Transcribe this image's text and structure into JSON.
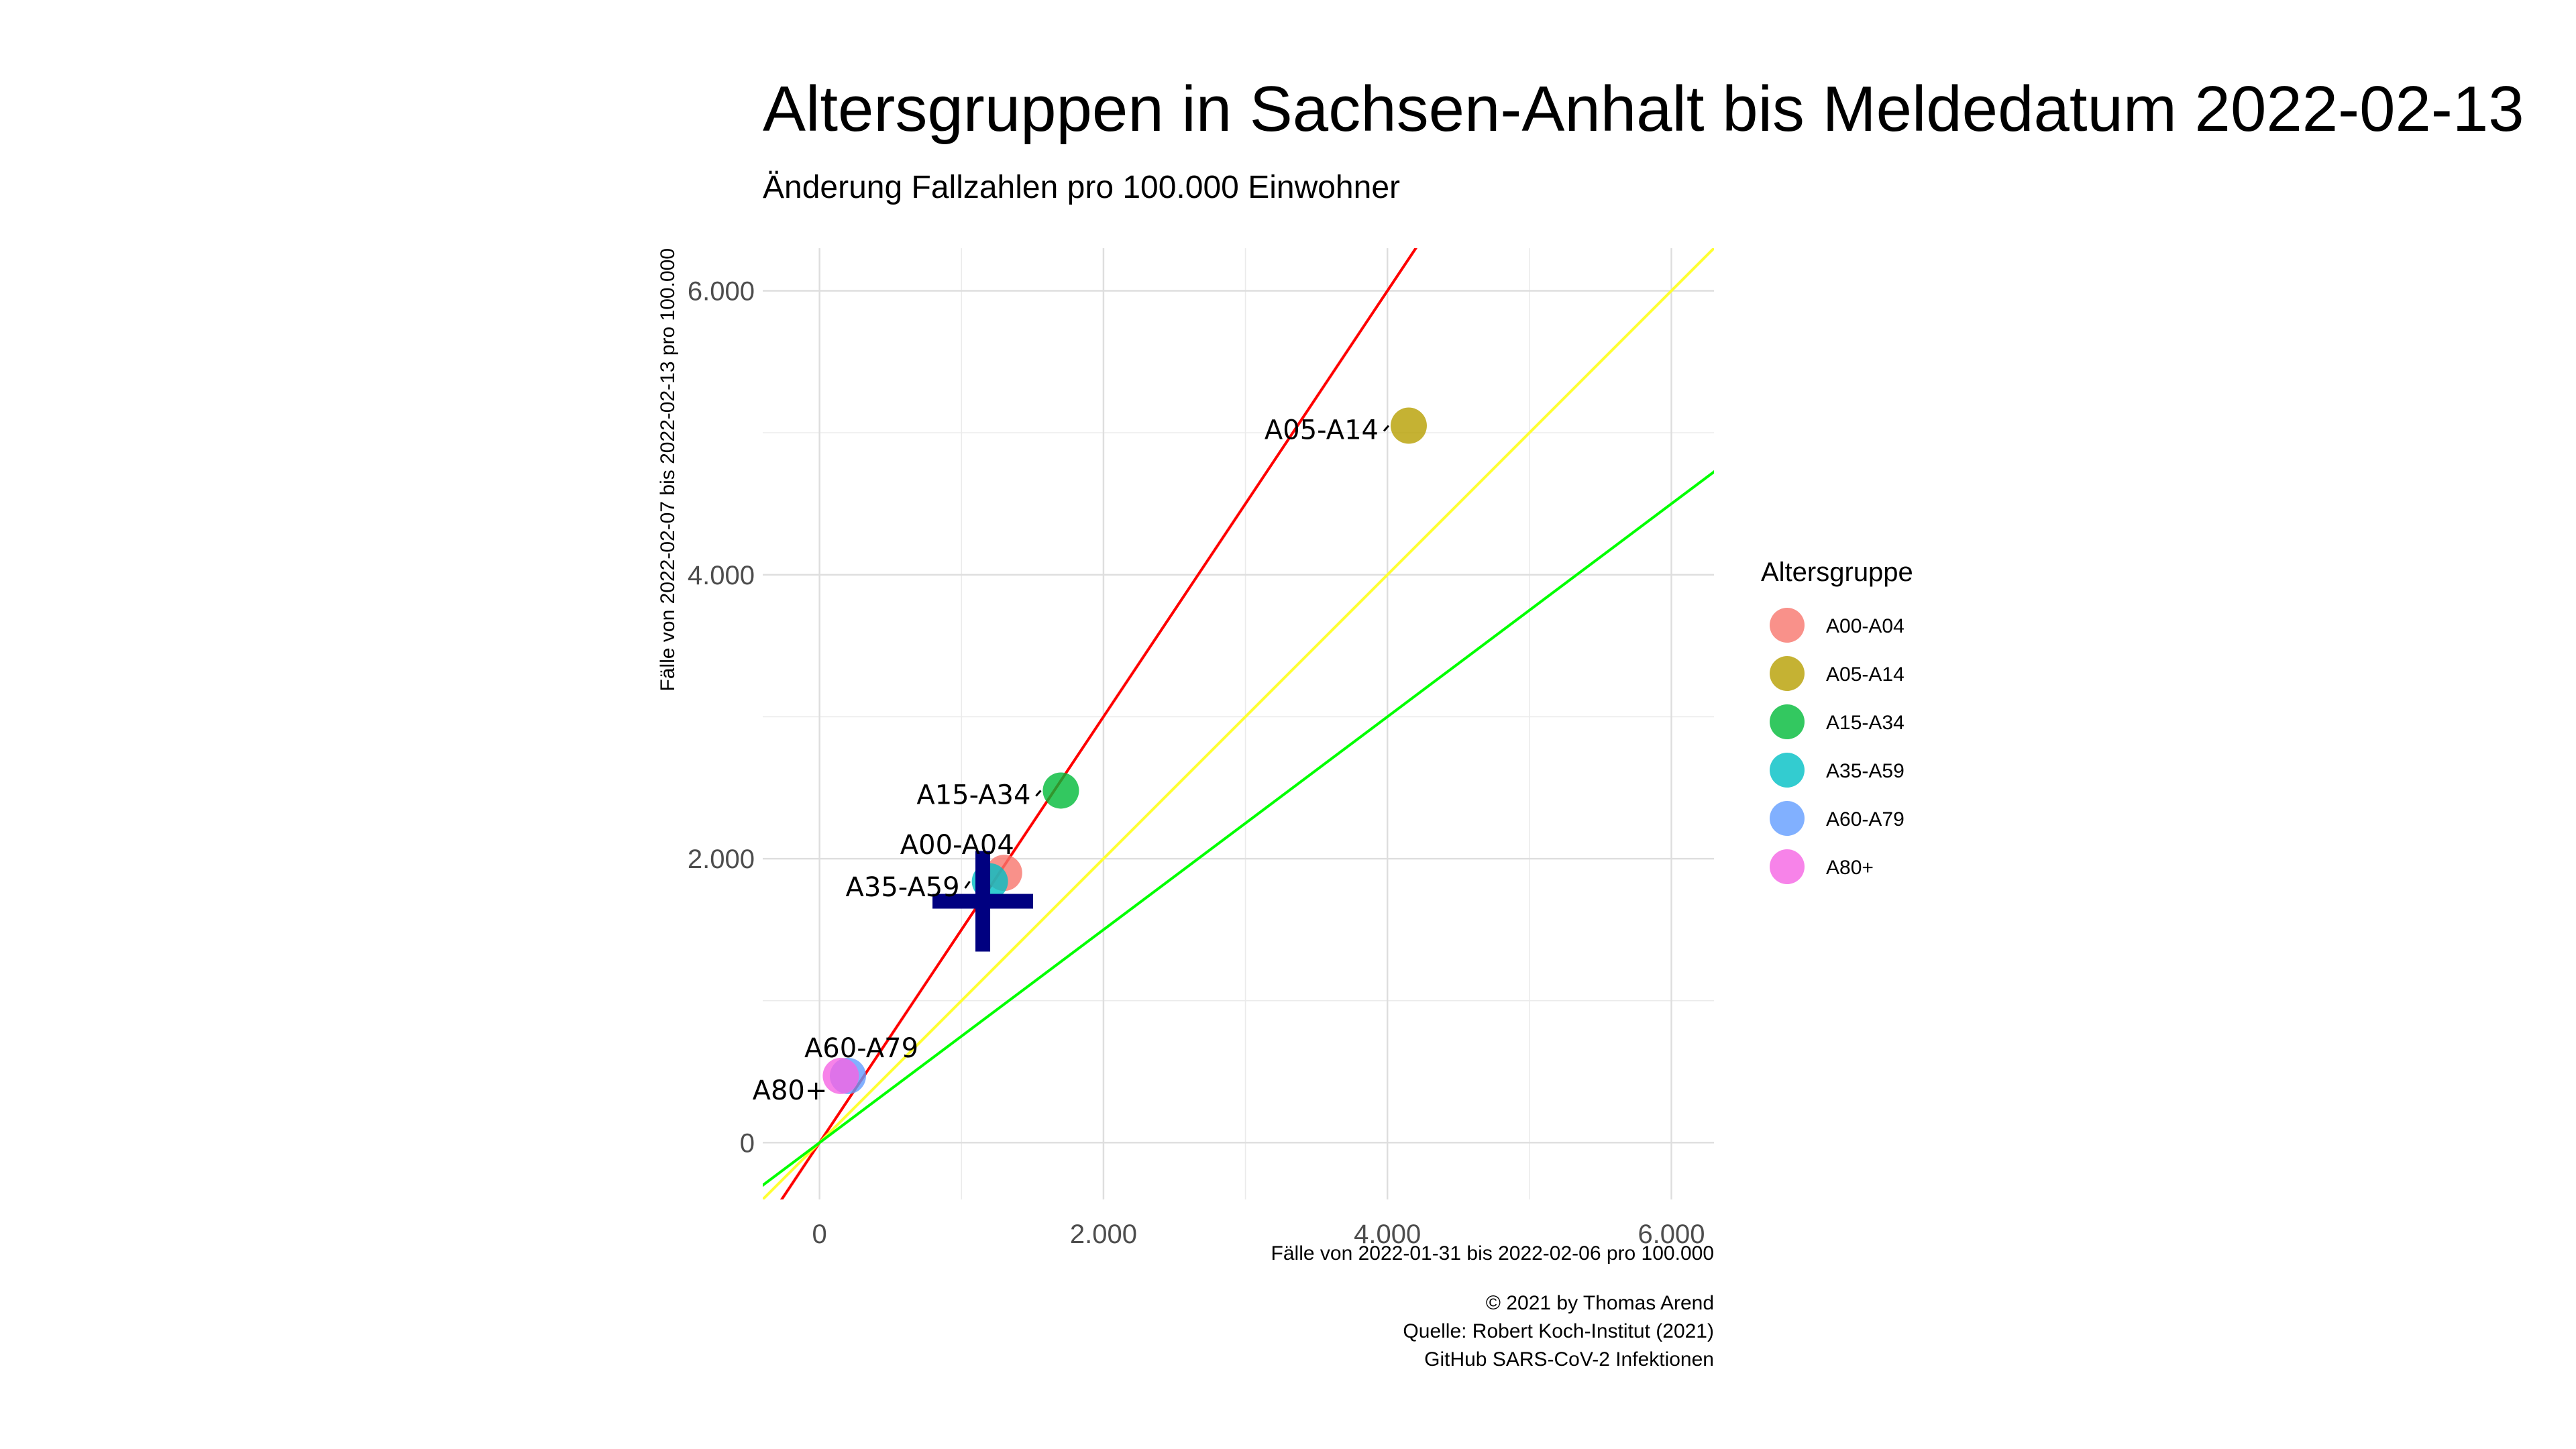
{
  "chart_data": {
    "type": "scatter",
    "title": "Altersgruppen in Sachsen-Anhalt bis Meldedatum 2022-02-13",
    "subtitle": "Änderung Fallzahlen pro 100.000 Einwohner",
    "xlabel": "Fälle von 2022-01-31 bis 2022-02-06 pro 100.000",
    "ylabel": "Fälle von 2022-02-07 bis 2022-02-13 pro 100.000",
    "xlim": [
      -400,
      6300
    ],
    "ylim": [
      -400,
      6300
    ],
    "x_ticks": [
      0,
      2000,
      4000,
      6000
    ],
    "x_tick_labels": [
      "0",
      "2.000",
      "4.000",
      "6.000"
    ],
    "y_ticks": [
      0,
      2000,
      4000,
      6000
    ],
    "y_tick_labels": [
      "0",
      "2.000",
      "4.000",
      "6.000"
    ],
    "grid": true,
    "legend": {
      "title": "Altersgruppe",
      "position": "right",
      "entries": [
        {
          "name": "A00-A04",
          "color": "#F8766D"
        },
        {
          "name": "A05-A14",
          "color": "#B79F00"
        },
        {
          "name": "A15-A34",
          "color": "#00BA38"
        },
        {
          "name": "A35-A59",
          "color": "#00BFC4"
        },
        {
          "name": "A60-A79",
          "color": "#619CFF"
        },
        {
          "name": "A80+",
          "color": "#F564E3"
        }
      ]
    },
    "points": [
      {
        "name": "A00-A04",
        "x": 1300,
        "y": 1900,
        "color": "#F8766D",
        "label": "A00-A04"
      },
      {
        "name": "A05-A14",
        "x": 4150,
        "y": 5050,
        "color": "#B79F00",
        "label": "A05-A14"
      },
      {
        "name": "A15-A34",
        "x": 1700,
        "y": 2480,
        "color": "#00BA38",
        "label": "A15-A34"
      },
      {
        "name": "A35-A59",
        "x": 1200,
        "y": 1840,
        "color": "#00BFC4",
        "label": "A35-A59"
      },
      {
        "name": "A60-A79",
        "x": 200,
        "y": 470,
        "color": "#619CFF",
        "label": "A60-A79"
      },
      {
        "name": "A80+",
        "x": 150,
        "y": 470,
        "color": "#F564E3",
        "label": "A80+"
      }
    ],
    "total_marker": {
      "x": 1150,
      "y": 1700,
      "color": "#000080",
      "shape": "cross"
    },
    "reference_lines": [
      {
        "slope": 1.5,
        "color": "#FF0000"
      },
      {
        "slope": 1.0,
        "color": "#FFFF33"
      },
      {
        "slope": 0.75,
        "color": "#00FF00"
      }
    ]
  },
  "caption": [
    "© 2021 by Thomas Arend",
    "Quelle: Robert Koch-Institut (2021)",
    "GitHub SARS-CoV-2 Infektionen"
  ]
}
